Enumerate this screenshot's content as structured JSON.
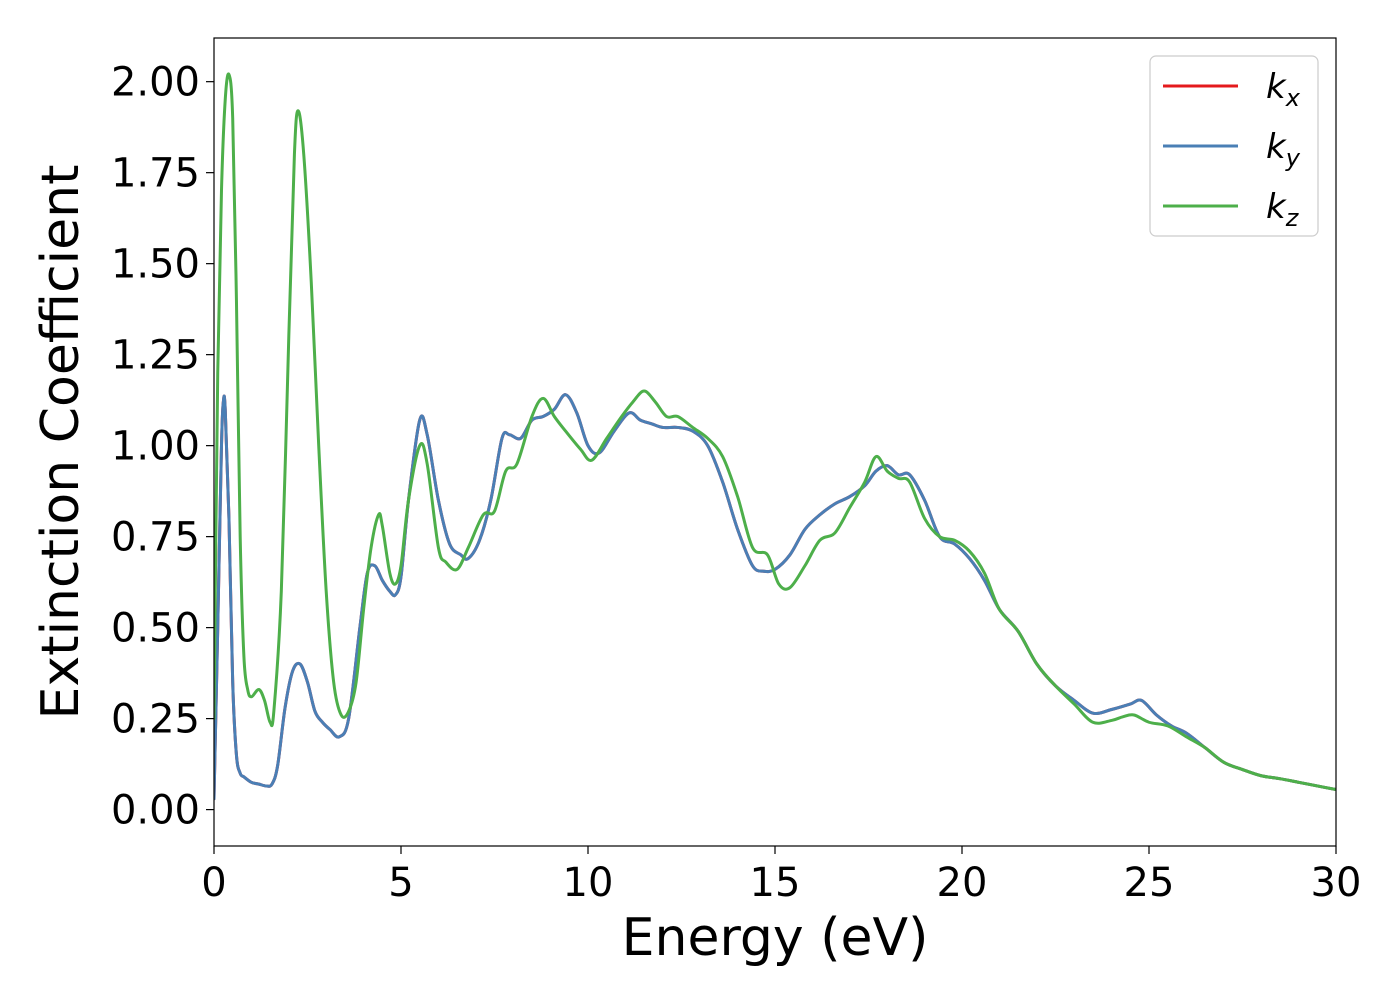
{
  "chart_data": {
    "type": "line",
    "title": "",
    "xlabel": "Energy (eV)",
    "ylabel": "Extinction Coefficient",
    "xlim": [
      0,
      30
    ],
    "ylim": [
      -0.1,
      2.12
    ],
    "xticks": [
      0,
      5,
      10,
      15,
      20,
      25,
      30
    ],
    "xtick_labels": [
      "0",
      "5",
      "10",
      "15",
      "20",
      "25",
      "30"
    ],
    "yticks": [
      0.0,
      0.25,
      0.5,
      0.75,
      1.0,
      1.25,
      1.5,
      1.75,
      2.0
    ],
    "ytick_labels": [
      "0.00",
      "0.25",
      "0.50",
      "0.75",
      "1.00",
      "1.25",
      "1.50",
      "1.75",
      "2.00"
    ],
    "grid": false,
    "legend_position": "top-right",
    "series": [
      {
        "name": "k",
        "subscript": "x",
        "color": "#e41a1c",
        "x": [
          0,
          0.1,
          0.2,
          0.25,
          0.3,
          0.4,
          0.5,
          0.6,
          0.7,
          0.8,
          1.0,
          1.2,
          1.4,
          1.55,
          1.7,
          1.9,
          2.1,
          2.3,
          2.5,
          2.7,
          2.9,
          3.1,
          3.35,
          3.6,
          3.9,
          4.1,
          4.3,
          4.5,
          4.7,
          4.85,
          5.0,
          5.2,
          5.5,
          5.7,
          6.0,
          6.3,
          6.6,
          6.8,
          7.1,
          7.4,
          7.7,
          7.9,
          8.2,
          8.5,
          8.8,
          9.1,
          9.4,
          9.7,
          10.0,
          10.3,
          10.7,
          11.1,
          11.4,
          11.7,
          12.0,
          12.4,
          12.8,
          13.2,
          13.6,
          14.0,
          14.4,
          14.7,
          15.0,
          15.4,
          15.8,
          16.2,
          16.6,
          17.0,
          17.4,
          17.7,
          18.0,
          18.3,
          18.6,
          19.0,
          19.4,
          19.8,
          20.2,
          20.6,
          21.0,
          21.5,
          22.0,
          22.5,
          23.0,
          23.5,
          24.0,
          24.5,
          24.8,
          25.2,
          25.6,
          26.0,
          26.5,
          27.0,
          27.5,
          28.0,
          28.5,
          29.0,
          29.5,
          30.0
        ],
        "y": [
          0.03,
          0.5,
          1.0,
          1.12,
          1.1,
          0.8,
          0.35,
          0.15,
          0.1,
          0.09,
          0.075,
          0.07,
          0.065,
          0.07,
          0.12,
          0.28,
          0.38,
          0.4,
          0.35,
          0.27,
          0.24,
          0.22,
          0.2,
          0.25,
          0.5,
          0.65,
          0.67,
          0.63,
          0.6,
          0.59,
          0.64,
          0.85,
          1.07,
          1.03,
          0.85,
          0.73,
          0.7,
          0.69,
          0.74,
          0.85,
          1.02,
          1.03,
          1.02,
          1.07,
          1.08,
          1.1,
          1.14,
          1.09,
          1.0,
          0.98,
          1.04,
          1.09,
          1.07,
          1.06,
          1.05,
          1.05,
          1.04,
          1.0,
          0.9,
          0.77,
          0.67,
          0.655,
          0.66,
          0.7,
          0.77,
          0.81,
          0.84,
          0.86,
          0.89,
          0.93,
          0.945,
          0.92,
          0.92,
          0.85,
          0.75,
          0.73,
          0.69,
          0.63,
          0.55,
          0.49,
          0.4,
          0.34,
          0.3,
          0.265,
          0.275,
          0.29,
          0.3,
          0.26,
          0.23,
          0.21,
          0.17,
          0.13,
          0.11,
          0.093,
          0.085,
          0.075,
          0.065,
          0.055
        ]
      },
      {
        "name": "k",
        "subscript": "y",
        "color": "#4a7fb5",
        "x": [
          0,
          0.1,
          0.2,
          0.25,
          0.3,
          0.4,
          0.5,
          0.6,
          0.7,
          0.8,
          1.0,
          1.2,
          1.4,
          1.55,
          1.7,
          1.9,
          2.1,
          2.3,
          2.5,
          2.7,
          2.9,
          3.1,
          3.35,
          3.6,
          3.9,
          4.1,
          4.3,
          4.5,
          4.7,
          4.85,
          5.0,
          5.2,
          5.5,
          5.7,
          6.0,
          6.3,
          6.6,
          6.8,
          7.1,
          7.4,
          7.7,
          7.9,
          8.2,
          8.5,
          8.8,
          9.1,
          9.4,
          9.7,
          10.0,
          10.3,
          10.7,
          11.1,
          11.4,
          11.7,
          12.0,
          12.4,
          12.8,
          13.2,
          13.6,
          14.0,
          14.4,
          14.7,
          15.0,
          15.4,
          15.8,
          16.2,
          16.6,
          17.0,
          17.4,
          17.7,
          18.0,
          18.3,
          18.6,
          19.0,
          19.4,
          19.8,
          20.2,
          20.6,
          21.0,
          21.5,
          22.0,
          22.5,
          23.0,
          23.5,
          24.0,
          24.5,
          24.8,
          25.2,
          25.6,
          26.0,
          26.5,
          27.0,
          27.5,
          28.0,
          28.5,
          29.0,
          29.5,
          30.0
        ],
        "y": [
          0.03,
          0.5,
          1.0,
          1.12,
          1.1,
          0.8,
          0.35,
          0.15,
          0.1,
          0.09,
          0.075,
          0.07,
          0.065,
          0.07,
          0.12,
          0.28,
          0.38,
          0.4,
          0.35,
          0.27,
          0.24,
          0.22,
          0.2,
          0.25,
          0.5,
          0.65,
          0.67,
          0.63,
          0.6,
          0.59,
          0.64,
          0.85,
          1.07,
          1.03,
          0.85,
          0.73,
          0.7,
          0.69,
          0.74,
          0.85,
          1.02,
          1.03,
          1.02,
          1.07,
          1.08,
          1.1,
          1.14,
          1.09,
          1.0,
          0.98,
          1.04,
          1.09,
          1.07,
          1.06,
          1.05,
          1.05,
          1.04,
          1.0,
          0.9,
          0.77,
          0.67,
          0.655,
          0.66,
          0.7,
          0.77,
          0.81,
          0.84,
          0.86,
          0.89,
          0.93,
          0.945,
          0.92,
          0.92,
          0.85,
          0.75,
          0.73,
          0.69,
          0.63,
          0.55,
          0.49,
          0.4,
          0.34,
          0.3,
          0.265,
          0.275,
          0.29,
          0.3,
          0.26,
          0.23,
          0.21,
          0.17,
          0.13,
          0.11,
          0.093,
          0.085,
          0.075,
          0.065,
          0.055
        ]
      },
      {
        "name": "k",
        "subscript": "z",
        "color": "#4daf4a",
        "x": [
          0,
          0.1,
          0.2,
          0.3,
          0.4,
          0.5,
          0.6,
          0.7,
          0.8,
          0.9,
          1.0,
          1.2,
          1.35,
          1.5,
          1.6,
          1.8,
          2.0,
          2.15,
          2.25,
          2.4,
          2.6,
          2.8,
          3.0,
          3.2,
          3.4,
          3.6,
          3.8,
          4.0,
          4.2,
          4.4,
          4.5,
          4.7,
          4.85,
          5.0,
          5.2,
          5.5,
          5.7,
          6.0,
          6.2,
          6.5,
          6.8,
          7.2,
          7.5,
          7.8,
          8.1,
          8.5,
          8.8,
          9.1,
          9.4,
          9.8,
          10.1,
          10.5,
          10.9,
          11.2,
          11.5,
          11.8,
          12.1,
          12.4,
          12.8,
          13.2,
          13.6,
          14.0,
          14.4,
          14.8,
          15.1,
          15.4,
          15.8,
          16.2,
          16.6,
          17.0,
          17.4,
          17.7,
          18.0,
          18.3,
          18.6,
          19.0,
          19.4,
          19.8,
          20.2,
          20.6,
          21.0,
          21.5,
          22.0,
          22.5,
          23.0,
          23.5,
          24.0,
          24.3,
          24.6,
          25.0,
          25.5,
          26.0,
          26.5,
          27.0,
          27.5,
          28.0,
          28.5,
          29.0,
          29.5,
          30.0
        ],
        "y": [
          0.25,
          1.2,
          1.7,
          1.95,
          2.02,
          1.9,
          1.4,
          0.75,
          0.42,
          0.33,
          0.31,
          0.33,
          0.3,
          0.24,
          0.27,
          0.6,
          1.3,
          1.8,
          1.92,
          1.8,
          1.45,
          1.0,
          0.6,
          0.35,
          0.26,
          0.27,
          0.35,
          0.55,
          0.72,
          0.81,
          0.78,
          0.65,
          0.62,
          0.67,
          0.85,
          1.0,
          0.95,
          0.72,
          0.68,
          0.66,
          0.72,
          0.81,
          0.82,
          0.93,
          0.95,
          1.08,
          1.13,
          1.08,
          1.04,
          0.99,
          0.96,
          1.02,
          1.08,
          1.12,
          1.15,
          1.12,
          1.08,
          1.08,
          1.05,
          1.02,
          0.97,
          0.86,
          0.72,
          0.7,
          0.62,
          0.61,
          0.67,
          0.74,
          0.76,
          0.83,
          0.9,
          0.97,
          0.93,
          0.91,
          0.9,
          0.8,
          0.75,
          0.74,
          0.71,
          0.65,
          0.55,
          0.49,
          0.4,
          0.34,
          0.29,
          0.24,
          0.245,
          0.255,
          0.26,
          0.24,
          0.23,
          0.2,
          0.17,
          0.13,
          0.11,
          0.093,
          0.085,
          0.075,
          0.065,
          0.055
        ]
      }
    ]
  }
}
